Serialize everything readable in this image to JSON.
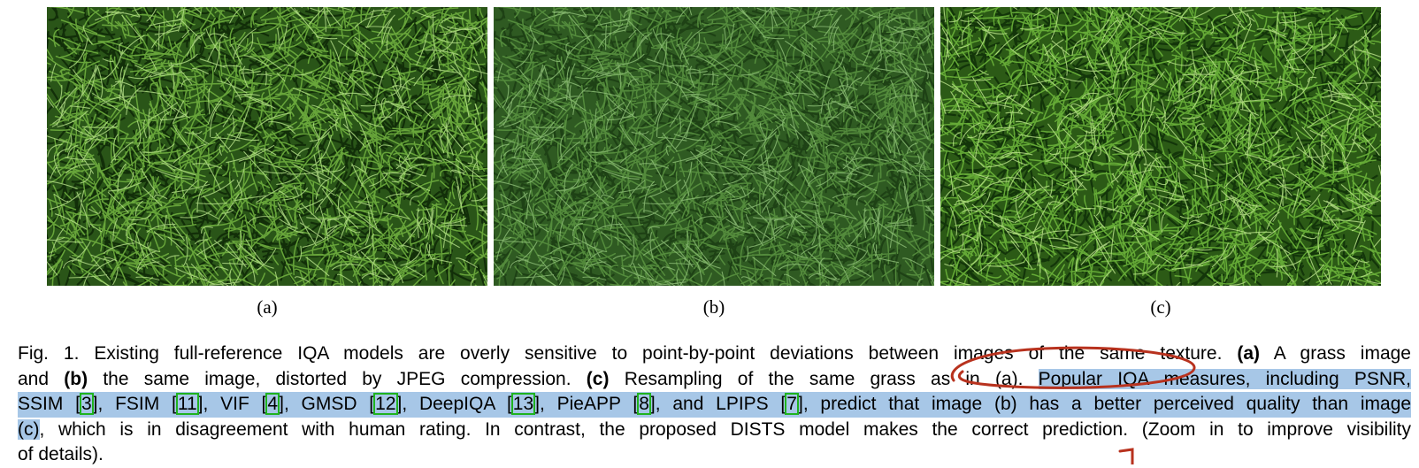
{
  "panels": {
    "a": {
      "label": "(a)",
      "base": "#2a5518",
      "blade": "#6fae3e",
      "light": "#b7e08a",
      "dark": "#0f2a08"
    },
    "b": {
      "label": "(b)",
      "base": "#2f5a22",
      "blade": "#5f9a45",
      "light": "#9fcf86",
      "dark": "#1a3a12"
    },
    "c": {
      "label": "(c)",
      "base": "#2c5a16",
      "blade": "#6cb23a",
      "light": "#bde38c",
      "dark": "#113109"
    }
  },
  "caption": {
    "l1_a": "Fig. 1. Existing full-reference IQA models are overly sensitive to point-by-point deviations between images of the same texture.",
    "l1_b": "(a)",
    "l1_c": "A grass image",
    "l2_a": "and",
    "l2_b": "(b)",
    "l2_c": "the same image, distorted by JPEG compression.",
    "l2_d": "(c)",
    "l2_e": "Resampling of the same grass as in (a).",
    "l2_f": "Popular IQA measures, including PSNR,",
    "l3_ssim": "SSIM",
    "ref3": "3",
    "l3_fsim": ", FSIM",
    "ref11": "11",
    "l3_vif": ", VIF",
    "ref4": "4",
    "l3_gmsd": ", GMSD",
    "ref12": "12",
    "l3_deep": ", DeepIQA",
    "ref13": "13",
    "l3_pie": ", PieAPP",
    "ref8": "8",
    "l3_lpips": ", and LPIPS",
    "ref7": "7",
    "l3_tail": ", predict that image (b) has a better perceived quality than image",
    "l4_hl": "(c)",
    "l4_rest": ", which is in disagreement with human rating. In contrast, the proposed DISTS model makes the correct prediction. (Zoom in to improve visibility",
    "l5": "of details)."
  },
  "annotation": {
    "color": "#b8321e"
  }
}
